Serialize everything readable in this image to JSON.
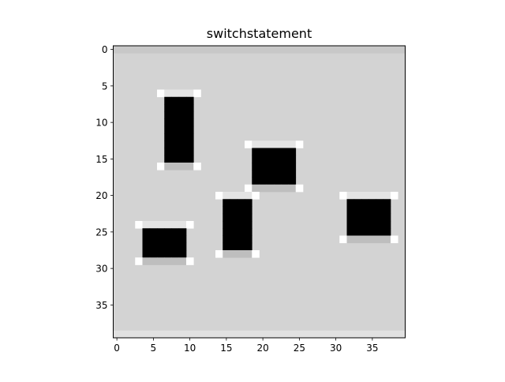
{
  "chart_data": {
    "type": "heatmap",
    "title": "switchstatement",
    "xlabel": "",
    "ylabel": "",
    "width": 40,
    "height": 40,
    "xlim": [
      -0.5,
      39.5
    ],
    "ylim": [
      39.5,
      -0.5
    ],
    "x_ticks": [
      0,
      5,
      10,
      15,
      20,
      25,
      30,
      35
    ],
    "y_ticks": [
      0,
      5,
      10,
      15,
      20,
      25,
      30,
      35
    ],
    "colormap": "gray",
    "grid": false,
    "background_level": 211,
    "border_rows": [
      {
        "rows": [
          0,
          0
        ],
        "level": 200
      },
      {
        "rows": [
          39,
          39
        ],
        "level": 225
      }
    ],
    "objects": [
      {
        "x": [
          6,
          11
        ],
        "y": [
          6,
          16
        ]
      },
      {
        "x": [
          18,
          25
        ],
        "y": [
          13,
          19
        ]
      },
      {
        "x": [
          14,
          19
        ],
        "y": [
          20,
          28
        ]
      },
      {
        "x": [
          3,
          10
        ],
        "y": [
          24,
          29
        ]
      },
      {
        "x": [
          31,
          38
        ],
        "y": [
          20,
          26
        ]
      }
    ],
    "object_levels": {
      "interior": 0,
      "top_edge": 228,
      "bottom_edge": 190,
      "corner": 255
    }
  }
}
